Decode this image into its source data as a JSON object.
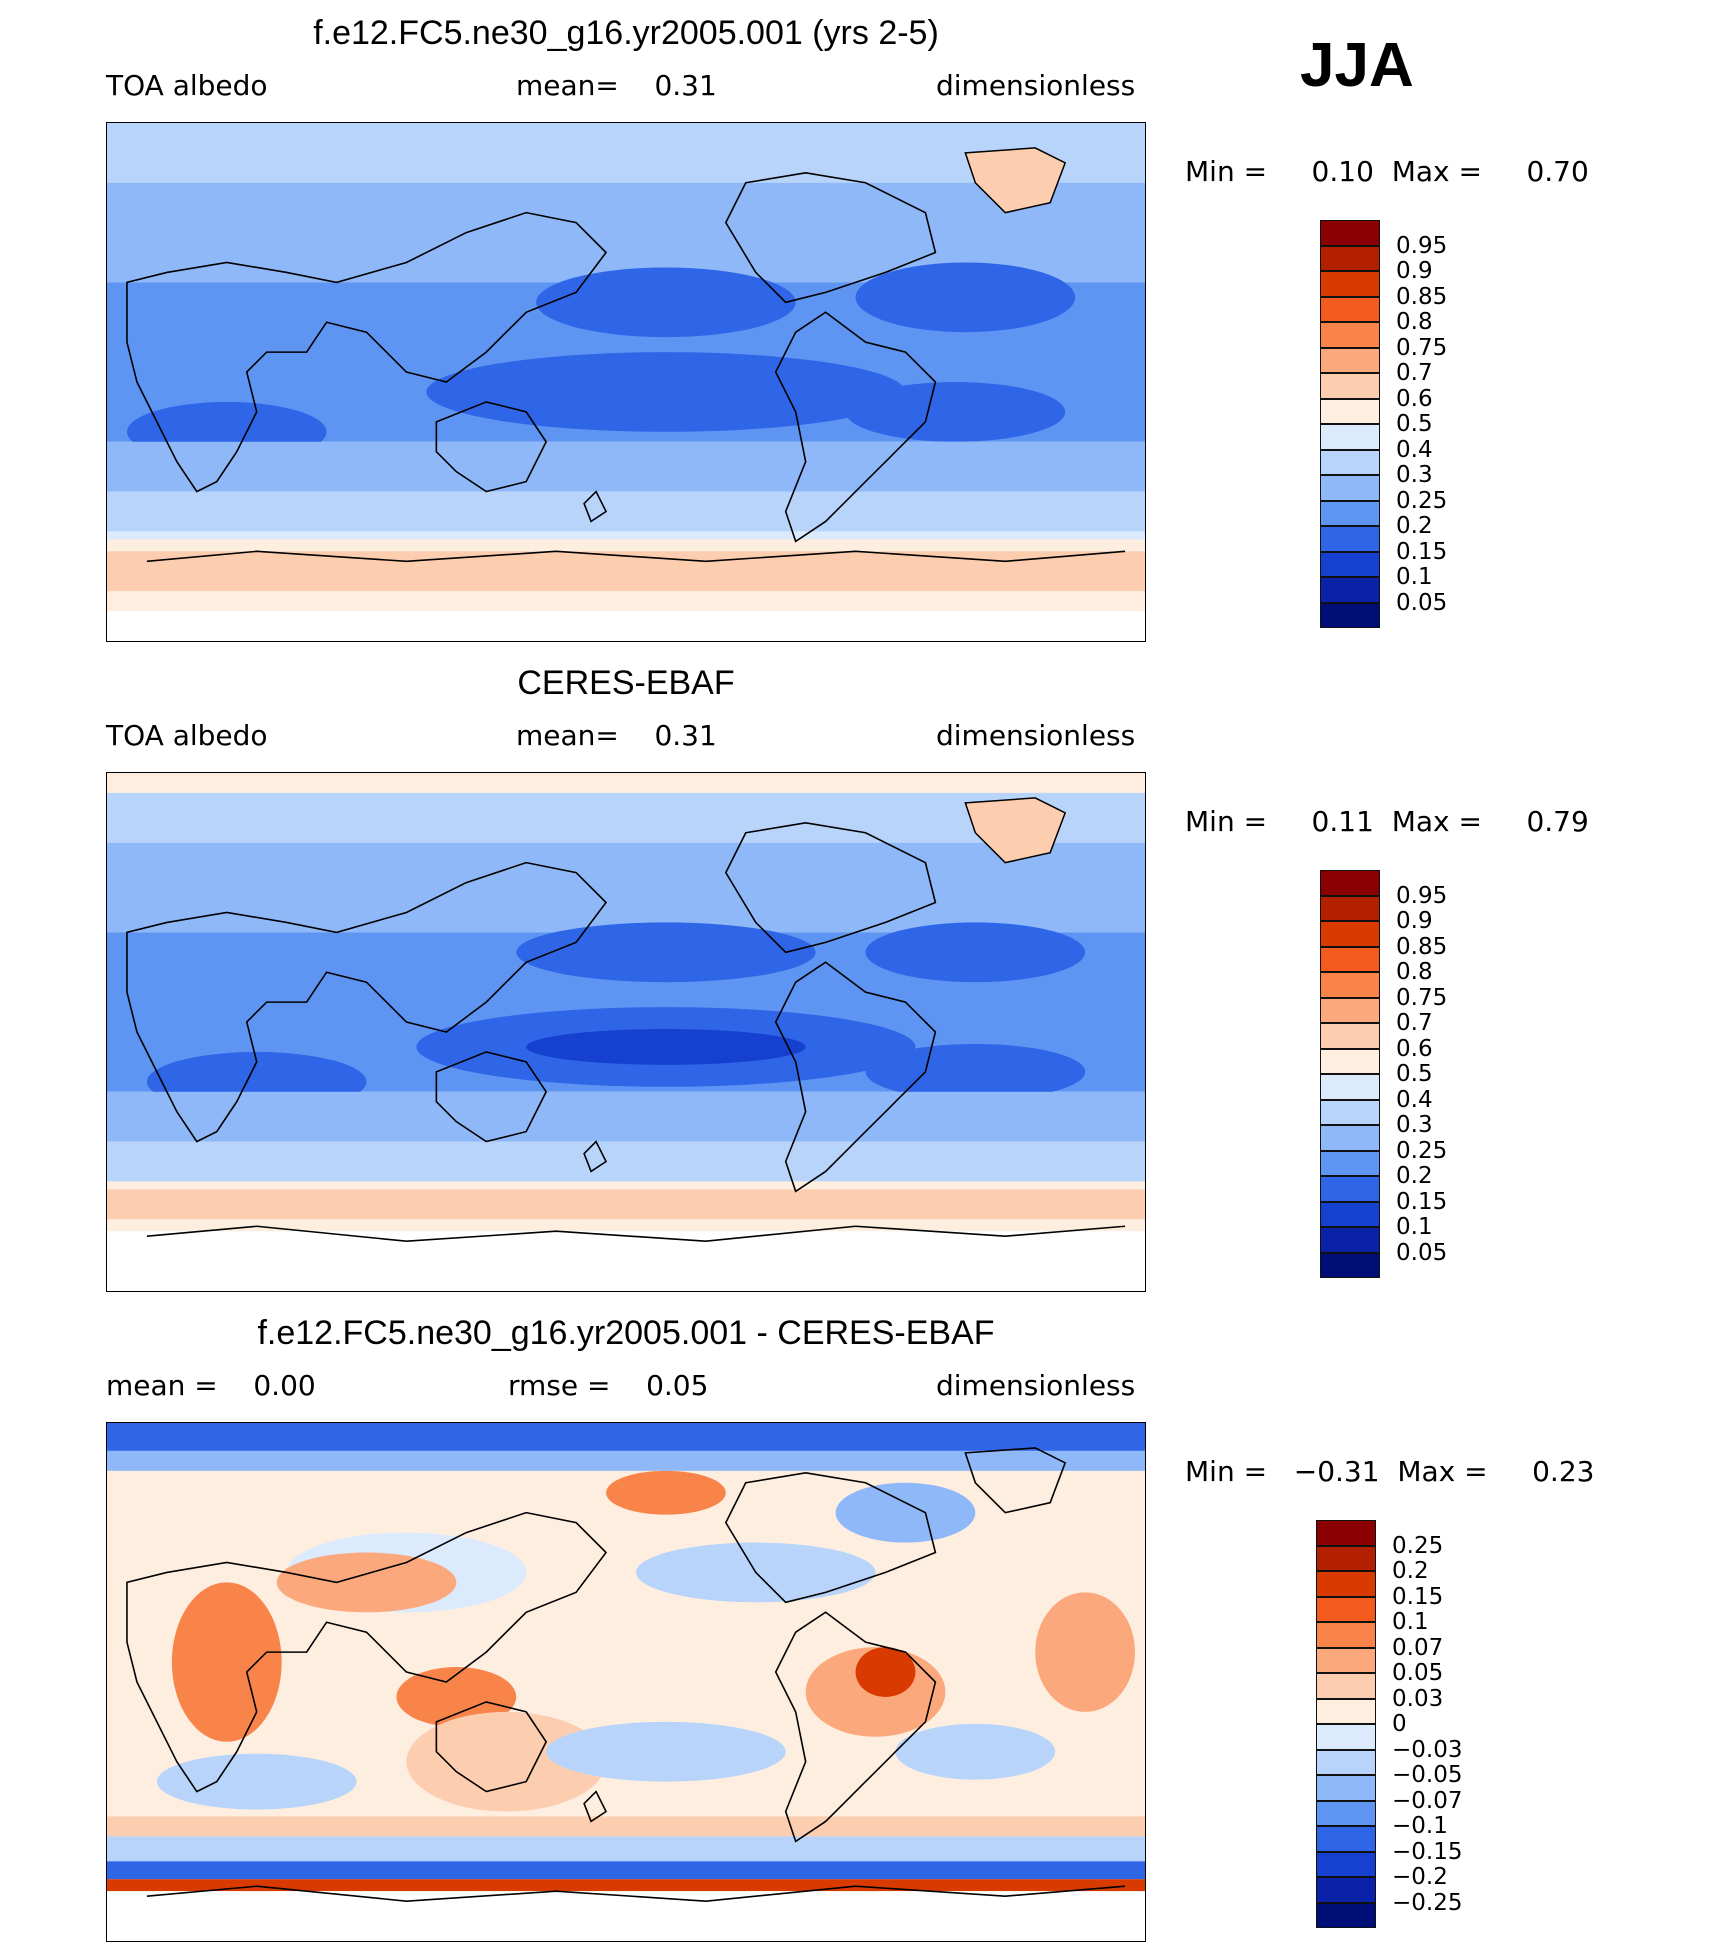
{
  "season": "JJA",
  "panels": [
    {
      "title": "f.e12.FC5.ne30_g16.yr2005.001 (yrs 2-5)",
      "left_label": "TOA albedo",
      "center_label": "mean=    0.31",
      "right_label": "dimensionless",
      "stats": "Min =     0.10  Max =     0.70",
      "colorbar": {
        "labels": [
          "0.95",
          "0.9",
          "0.85",
          "0.8",
          "0.75",
          "0.7",
          "0.6",
          "0.5",
          "0.4",
          "0.3",
          "0.25",
          "0.2",
          "0.15",
          "0.1",
          "0.05"
        ],
        "colors": [
          "#8b0000",
          "#b22000",
          "#d93a00",
          "#f25a1e",
          "#f9844a",
          "#fba87c",
          "#fdcdb0",
          "#fdeee0",
          "#dbeafc",
          "#b8d4fb",
          "#8fb8f8",
          "#5f95f2",
          "#2f66e8",
          "#1641d0",
          "#0a22a8",
          "#000f78"
        ]
      }
    },
    {
      "title": "CERES-EBAF",
      "left_label": "TOA albedo",
      "center_label": "mean=    0.31",
      "right_label": "dimensionless",
      "stats": "Min =     0.11  Max =     0.79",
      "colorbar": {
        "labels": [
          "0.95",
          "0.9",
          "0.85",
          "0.8",
          "0.75",
          "0.7",
          "0.6",
          "0.5",
          "0.4",
          "0.3",
          "0.25",
          "0.2",
          "0.15",
          "0.1",
          "0.05"
        ],
        "colors": [
          "#8b0000",
          "#b22000",
          "#d93a00",
          "#f25a1e",
          "#f9844a",
          "#fba87c",
          "#fdcdb0",
          "#fdeee0",
          "#dbeafc",
          "#b8d4fb",
          "#8fb8f8",
          "#5f95f2",
          "#2f66e8",
          "#1641d0",
          "#0a22a8",
          "#000f78"
        ]
      }
    },
    {
      "title": "f.e12.FC5.ne30_g16.yr2005.001 - CERES-EBAF",
      "left_label": "mean =    0.00",
      "center_label": "rmse =    0.05",
      "right_label": "dimensionless",
      "stats": "Min =   −0.31  Max =     0.23",
      "colorbar": {
        "labels": [
          "0.25",
          "0.2",
          "0.15",
          "0.1",
          "0.07",
          "0.05",
          "0.03",
          "0",
          "−0.03",
          "−0.05",
          "−0.07",
          "−0.1",
          "−0.15",
          "−0.2",
          "−0.25"
        ],
        "colors": [
          "#8b0000",
          "#b22000",
          "#d93a00",
          "#f25a1e",
          "#f9844a",
          "#fba87c",
          "#fdcdb0",
          "#fdeee0",
          "#dbeafc",
          "#b8d4fb",
          "#8fb8f8",
          "#5f95f2",
          "#2f66e8",
          "#1641d0",
          "#0a22a8",
          "#000f78"
        ]
      }
    }
  ]
}
